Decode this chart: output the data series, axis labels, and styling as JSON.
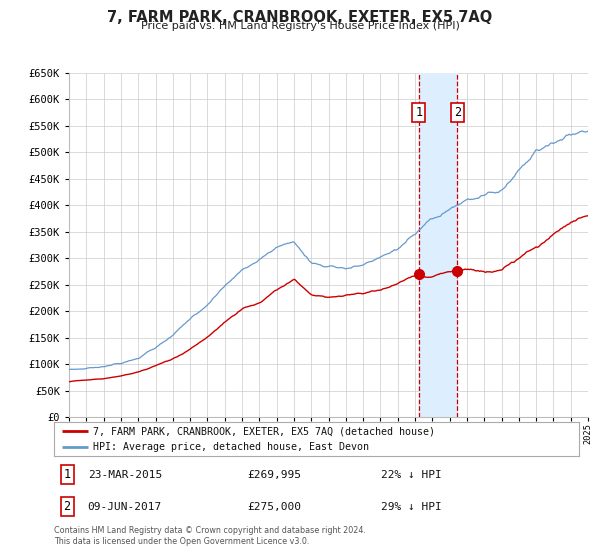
{
  "title": "7, FARM PARK, CRANBROOK, EXETER, EX5 7AQ",
  "subtitle": "Price paid vs. HM Land Registry's House Price Index (HPI)",
  "legend_line1": "7, FARM PARK, CRANBROOK, EXETER, EX5 7AQ (detached house)",
  "legend_line2": "HPI: Average price, detached house, East Devon",
  "transaction1_date": "23-MAR-2015",
  "transaction1_price": 269995,
  "transaction1_hpi_diff": "22% ↓ HPI",
  "transaction2_date": "09-JUN-2017",
  "transaction2_price": 275000,
  "transaction2_hpi_diff": "29% ↓ HPI",
  "transaction1_year": 2015.22,
  "transaction2_year": 2017.44,
  "footnote": "Contains HM Land Registry data © Crown copyright and database right 2024.\nThis data is licensed under the Open Government Licence v3.0.",
  "red_color": "#cc0000",
  "blue_color": "#6699cc",
  "highlight_color": "#ddeeff",
  "grid_color": "#cccccc",
  "bg_color": "#ffffff",
  "ylim_min": 0,
  "ylim_max": 650000,
  "xlim_min": 1995,
  "xlim_max": 2025
}
